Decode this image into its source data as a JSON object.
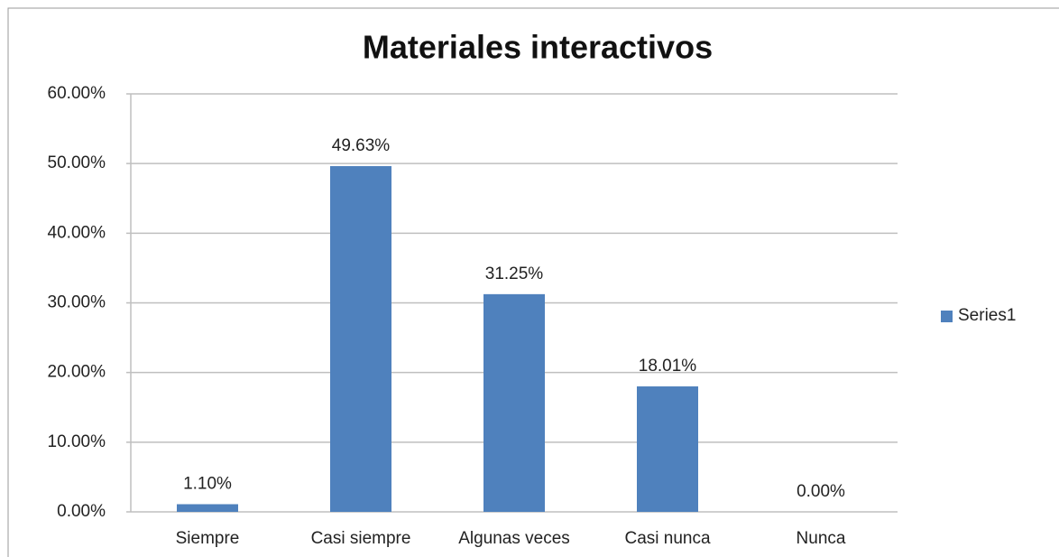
{
  "chart_data": {
    "type": "bar",
    "title": "Materiales interactivos",
    "categories": [
      "Siempre",
      "Casi siempre",
      "Algunas veces",
      "Casi nunca",
      "Nunca"
    ],
    "series": [
      {
        "name": "Series1",
        "color": "#4f81bd",
        "values": [
          1.1,
          49.63,
          31.25,
          18.01,
          0.0
        ],
        "value_labels": [
          "1.10%",
          "49.63%",
          "31.25%",
          "18.01%",
          "0.00%"
        ]
      }
    ],
    "ylim": [
      0,
      60
    ],
    "yticks": [
      {
        "value": 0,
        "label": "0.00%"
      },
      {
        "value": 10,
        "label": "10.00%"
      },
      {
        "value": 20,
        "label": "20.00%"
      },
      {
        "value": 30,
        "label": "30.00%"
      },
      {
        "value": 40,
        "label": "40.00%"
      },
      {
        "value": 50,
        "label": "50.00%"
      },
      {
        "value": 60,
        "label": "60.00%"
      }
    ],
    "grid": true,
    "legend": "right"
  }
}
